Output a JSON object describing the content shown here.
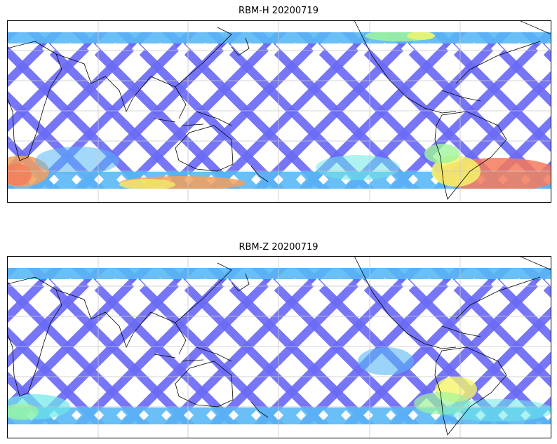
{
  "panels": [
    {
      "title": "RBM-H 20200719",
      "variant": "H"
    },
    {
      "title": "RBM-Z 20200719",
      "variant": "Z"
    }
  ],
  "colors": {
    "track_low": "#6a6af5",
    "track_mid": "#5ab8f5",
    "track_cyan": "#6ee8e8",
    "track_green": "#9ef59a",
    "track_yellow": "#f5f56a",
    "track_orange": "#f5a05a",
    "track_red": "#f57a5a",
    "coastline": "#000000",
    "gridline": "#c8c8c8",
    "frame": "#000000"
  }
}
